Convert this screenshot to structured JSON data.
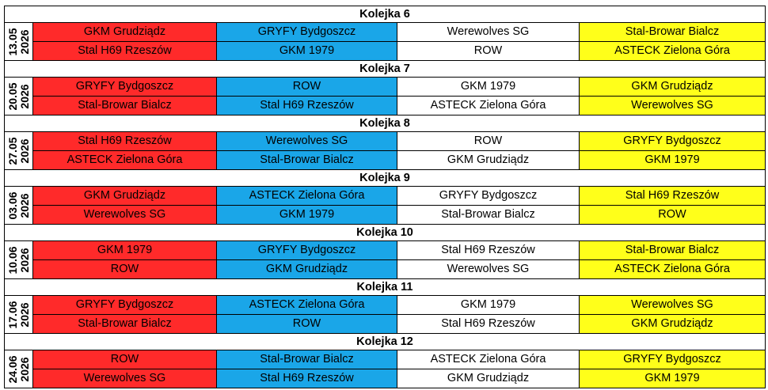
{
  "rounds": [
    {
      "title": "Kolejka 6",
      "date_day": "13.05",
      "date_year": "2026",
      "rows": [
        [
          "GKM Grudziądz",
          "GRYFY Bydgoszcz",
          "Werewolves SG",
          "Stal-Browar Bialcz"
        ],
        [
          "Stal H69 Rzeszów",
          "GKM 1979",
          "ROW",
          "ASTECK Zielona Góra"
        ]
      ]
    },
    {
      "title": "Kolejka 7",
      "date_day": "20.05",
      "date_year": "2026",
      "rows": [
        [
          "GRYFY Bydgoszcz",
          "ROW",
          "GKM 1979",
          "GKM Grudziądz"
        ],
        [
          "Stal-Browar Bialcz",
          "Stal H69 Rzeszów",
          "ASTECK Zielona Góra",
          "Werewolves SG"
        ]
      ]
    },
    {
      "title": "Kolejka 8",
      "date_day": "27.05",
      "date_year": "2026",
      "rows": [
        [
          "Stal H69 Rzeszów",
          "Werewolves SG",
          "ROW",
          "GRYFY Bydgoszcz"
        ],
        [
          "ASTECK Zielona Góra",
          "Stal-Browar Bialcz",
          "GKM Grudziądz",
          "GKM 1979"
        ]
      ]
    },
    {
      "title": "Kolejka 9",
      "date_day": "03.06",
      "date_year": "2026",
      "rows": [
        [
          "GKM Grudziądz",
          "ASTECK Zielona Góra",
          "GRYFY Bydgoszcz",
          "Stal H69 Rzeszów"
        ],
        [
          "Werewolves SG",
          "GKM 1979",
          "Stal-Browar Bialcz",
          "ROW"
        ]
      ]
    },
    {
      "title": "Kolejka 10",
      "date_day": "10.06",
      "date_year": "2026",
      "rows": [
        [
          "GKM 1979",
          "GRYFY Bydgoszcz",
          "Stal H69 Rzeszów",
          "Stal-Browar Bialcz"
        ],
        [
          "ROW",
          "GKM Grudziądz",
          "Werewolves SG",
          "ASTECK Zielona Góra"
        ]
      ]
    },
    {
      "title": "Kolejka 11",
      "date_day": "17.06",
      "date_year": "2026",
      "rows": [
        [
          "GRYFY Bydgoszcz",
          "ASTECK Zielona Góra",
          "GKM 1979",
          "Werewolves SG"
        ],
        [
          "Stal-Browar Bialcz",
          "ROW",
          "Stal H69 Rzeszów",
          "GKM Grudziądz"
        ]
      ]
    },
    {
      "title": "Kolejka 12",
      "date_day": "24.06",
      "date_year": "2026",
      "rows": [
        [
          "ROW",
          "Stal-Browar Bialcz",
          "ASTECK Zielona Góra",
          "GRYFY Bydgoszcz"
        ],
        [
          "Werewolves SG",
          "Stal H69 Rzeszów",
          "GKM Grudziądz",
          "GKM 1979"
        ]
      ]
    }
  ],
  "colors": {
    "column_1": "#ff2a2a",
    "column_2": "#1aa6e8",
    "column_3": "#ffffff",
    "column_4": "#ffff1a"
  }
}
